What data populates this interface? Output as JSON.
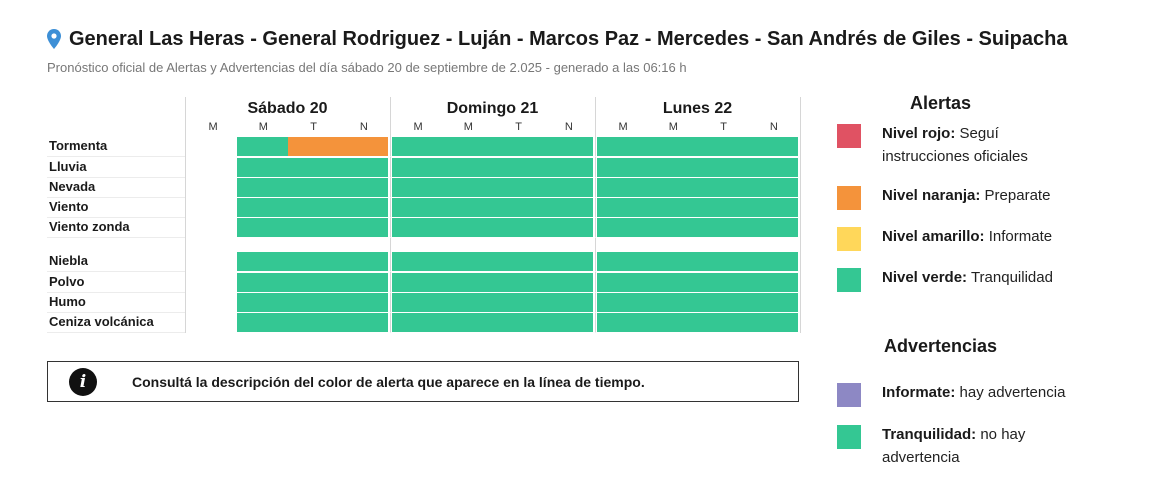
{
  "header": {
    "title": "General Las Heras - General Rodriguez - Luján - Marcos Paz - Mercedes - San Andrés de Giles - Suipacha",
    "subtitle": "Pronóstico oficial de Alertas y Advertencias del día sábado 20 de septiembre de 2.025 - generado a las 06:16 h",
    "pin_icon": "location-pin-icon"
  },
  "days": [
    {
      "label": "Sábado 20",
      "periods": [
        "M",
        "M",
        "T",
        "N"
      ]
    },
    {
      "label": "Domingo 21",
      "periods": [
        "M",
        "M",
        "T",
        "N"
      ]
    },
    {
      "label": "Lunes 22",
      "periods": [
        "M",
        "M",
        "T",
        "N"
      ]
    }
  ],
  "colors": {
    "rojo": "#e05263",
    "naranja": "#f4933b",
    "amarillo": "#ffd75a",
    "verde": "#34c793",
    "violeta": "#8d88c4"
  },
  "timeline": [
    {
      "label": "Tormenta",
      "cells": [
        "none",
        "verde",
        "naranja",
        "naranja",
        "verde",
        "verde",
        "verde",
        "verde",
        "verde",
        "verde",
        "verde",
        "verde"
      ]
    },
    {
      "label": "Lluvia",
      "cells": [
        "none",
        "verde",
        "verde",
        "verde",
        "verde",
        "verde",
        "verde",
        "verde",
        "verde",
        "verde",
        "verde",
        "verde"
      ]
    },
    {
      "label": "Nevada",
      "cells": [
        "none",
        "verde",
        "verde",
        "verde",
        "verde",
        "verde",
        "verde",
        "verde",
        "verde",
        "verde",
        "verde",
        "verde"
      ]
    },
    {
      "label": "Viento",
      "cells": [
        "none",
        "verde",
        "verde",
        "verde",
        "verde",
        "verde",
        "verde",
        "verde",
        "verde",
        "verde",
        "verde",
        "verde"
      ]
    },
    {
      "label": "Viento zonda",
      "cells": [
        "none",
        "verde",
        "verde",
        "verde",
        "verde",
        "verde",
        "verde",
        "verde",
        "verde",
        "verde",
        "verde",
        "verde"
      ]
    },
    {
      "label": "Niebla",
      "cells": [
        "none",
        "verde",
        "verde",
        "verde",
        "verde",
        "verde",
        "verde",
        "verde",
        "verde",
        "verde",
        "verde",
        "verde"
      ]
    },
    {
      "label": "Polvo",
      "cells": [
        "none",
        "verde",
        "verde",
        "verde",
        "verde",
        "verde",
        "verde",
        "verde",
        "verde",
        "verde",
        "verde",
        "verde"
      ]
    },
    {
      "label": "Humo",
      "cells": [
        "none",
        "verde",
        "verde",
        "verde",
        "verde",
        "verde",
        "verde",
        "verde",
        "verde",
        "verde",
        "verde",
        "verde"
      ]
    },
    {
      "label": "Ceniza volcánica",
      "cells": [
        "none",
        "verde",
        "verde",
        "verde",
        "verde",
        "verde",
        "verde",
        "verde",
        "verde",
        "verde",
        "verde",
        "verde"
      ]
    }
  ],
  "info": {
    "icon": "info-icon",
    "icon_glyph": "i",
    "text": "Consultá la descripción del color de alerta que aparece en la línea de tiempo."
  },
  "legend": {
    "alertas_title": "Alertas",
    "alertas": [
      {
        "color": "rojo",
        "label": "Nivel rojo:",
        "desc": "Seguí instrucciones oficiales"
      },
      {
        "color": "naranja",
        "label": "Nivel naranja:",
        "desc": "Preparate"
      },
      {
        "color": "amarillo",
        "label": "Nivel amarillo:",
        "desc": "Informate"
      },
      {
        "color": "verde",
        "label": "Nivel verde:",
        "desc": "Tranquilidad"
      }
    ],
    "advertencias_title": "Advertencias",
    "advertencias": [
      {
        "color": "violeta",
        "label": "Informate:",
        "desc": "hay advertencia"
      },
      {
        "color": "verde",
        "label": "Tranquilidad:",
        "desc": "no hay advertencia"
      }
    ]
  }
}
